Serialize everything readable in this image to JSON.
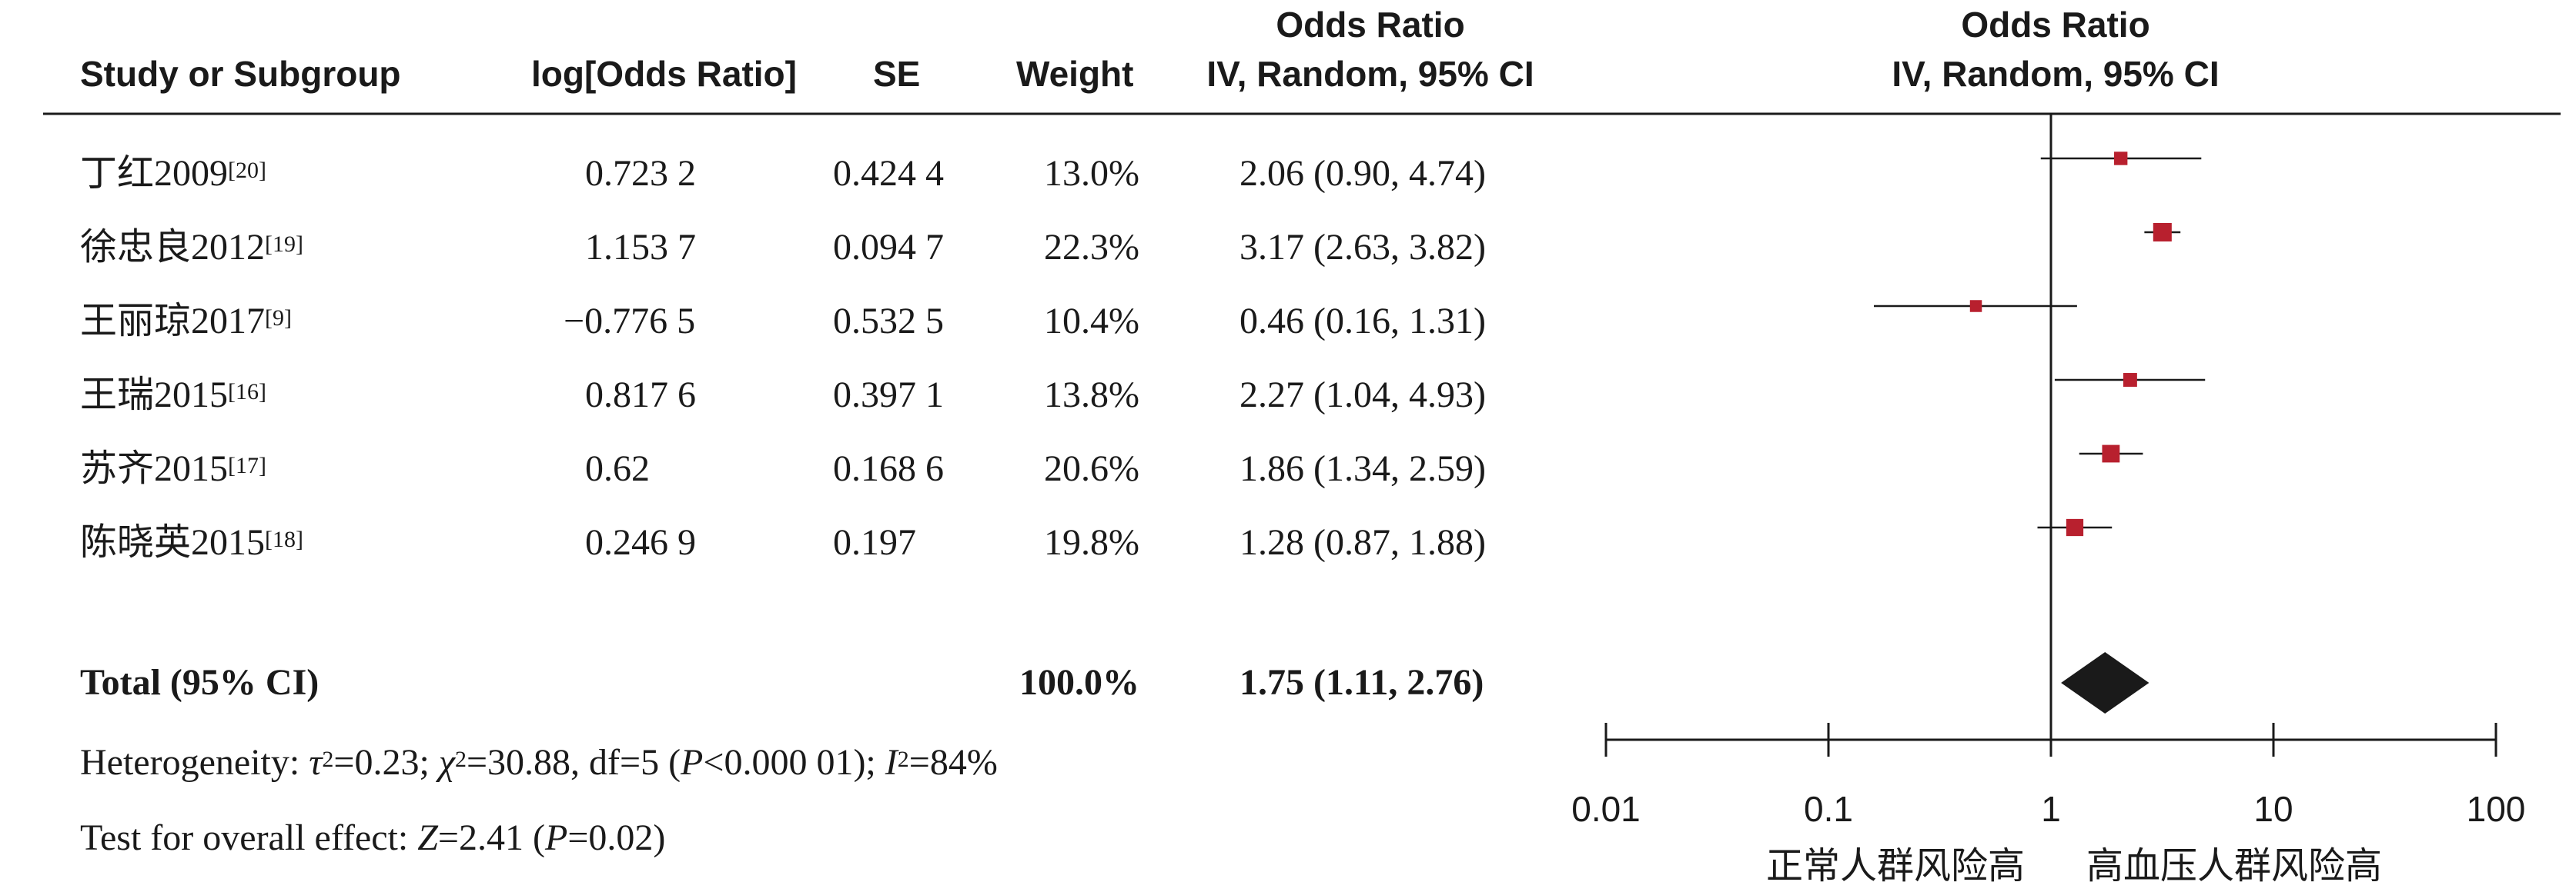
{
  "headers": {
    "study": "Study or Subgroup",
    "log_or": "log[Odds Ratio]",
    "se": "SE",
    "weight": "Weight",
    "or_line1": "Odds Ratio",
    "or_line2": "IV, Random, 95% CI",
    "plot_line1": "Odds Ratio",
    "plot_line2": "IV, Random, 95% CI"
  },
  "studies": [
    {
      "name": "丁红2009",
      "ref": "[20]",
      "log_or": "0.723 2",
      "se": "0.424 4",
      "weight": "13.0%",
      "ci_text": "2.06 (0.90, 4.74)"
    },
    {
      "name": "徐忠良2012",
      "ref": "[19]",
      "log_or": "1.153 7",
      "se": "0.094 7",
      "weight": "22.3%",
      "ci_text": "3.17 (2.63, 3.82)"
    },
    {
      "name": "王丽琼2017",
      "ref": "[9]",
      "log_or": "−0.776 5",
      "se": "0.532 5",
      "weight": "10.4%",
      "ci_text": "0.46 (0.16, 1.31)"
    },
    {
      "name": "王瑞2015",
      "ref": "[16]",
      "log_or": "0.817 6",
      "se": "0.397 1",
      "weight": "13.8%",
      "ci_text": "2.27 (1.04, 4.93)"
    },
    {
      "name": "苏齐2015",
      "ref": "[17]",
      "log_or": "0.62",
      "se": "0.168 6",
      "weight": "20.6%",
      "ci_text": "1.86 (1.34, 2.59)"
    },
    {
      "name": "陈晓英2015",
      "ref": "[18]",
      "log_or": "0.246 9",
      "se": "0.197",
      "weight": "19.8%",
      "ci_text": "1.28 (0.87, 1.88)"
    }
  ],
  "total": {
    "label": "Total (95% CI)",
    "weight": "100.0%",
    "ci_text": "1.75 (1.11, 2.76)"
  },
  "heterogeneity": {
    "prefix": "Heterogeneity: ",
    "tau_sym": "τ",
    "tau_val": "=0.23; ",
    "chi_sym": "χ",
    "chi_val": "=30.88, df=5 (",
    "p_sym": "P",
    "p_val": "<0.000 01); ",
    "i_sym": "I",
    "i_val": "=84%",
    "sq": "2"
  },
  "overall": {
    "prefix": "Test for overall effect: ",
    "z_sym": "Z",
    "z_val": "=2.41 (",
    "p_sym": "P",
    "p_val": "=0.02)"
  },
  "axis": {
    "ticks": [
      {
        "value": 0.01,
        "label": "0.01"
      },
      {
        "value": 0.1,
        "label": "0.1"
      },
      {
        "value": 1,
        "label": "1"
      },
      {
        "value": 10,
        "label": "10"
      },
      {
        "value": 100,
        "label": "100"
      }
    ],
    "left_label": "正常人群风险高",
    "right_label": "高血压人群风险高"
  },
  "colors": {
    "marker": "#b8202e",
    "diamond": "#1a1a1a",
    "line": "#1a1a1a"
  },
  "chart_data": {
    "type": "forest",
    "xscale": "log",
    "xlim": [
      0.01,
      100
    ],
    "reference_line": 1,
    "points": [
      {
        "study": "丁红2009",
        "or": 2.06,
        "lower": 0.9,
        "upper": 4.74,
        "weight": 13.0
      },
      {
        "study": "徐忠良2012",
        "or": 3.17,
        "lower": 2.63,
        "upper": 3.82,
        "weight": 22.3
      },
      {
        "study": "王丽琼2017",
        "or": 0.46,
        "lower": 0.16,
        "upper": 1.31,
        "weight": 10.4
      },
      {
        "study": "王瑞2015",
        "or": 2.27,
        "lower": 1.04,
        "upper": 4.93,
        "weight": 13.8
      },
      {
        "study": "苏齐2015",
        "or": 1.86,
        "lower": 1.34,
        "upper": 2.59,
        "weight": 20.6
      },
      {
        "study": "陈晓英2015",
        "or": 1.28,
        "lower": 0.87,
        "upper": 1.88,
        "weight": 19.8
      }
    ],
    "pooled": {
      "or": 1.75,
      "lower": 1.11,
      "upper": 2.76
    }
  }
}
